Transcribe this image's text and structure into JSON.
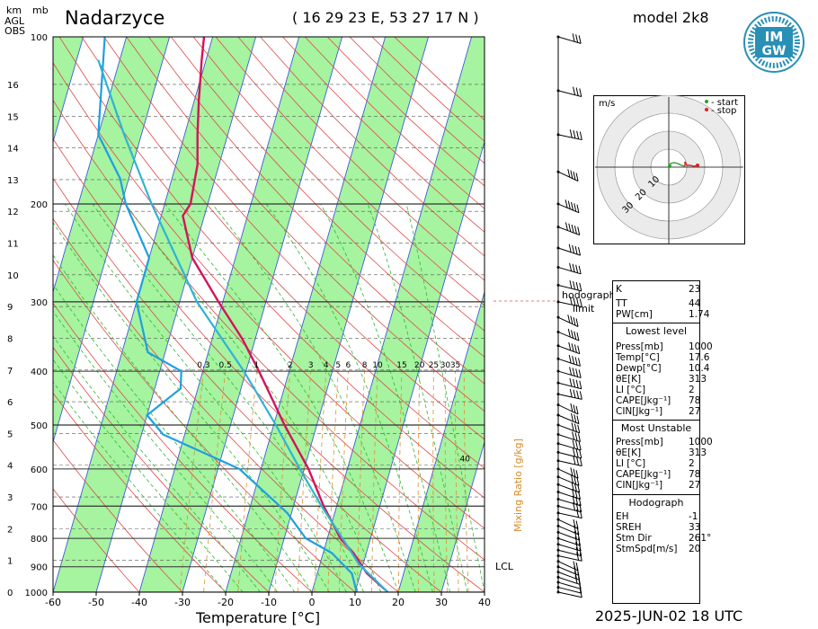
{
  "header": {
    "station": "Nadarzyce",
    "coords": "( 16 29 23  E, 53 27 17 N )",
    "model": "model 2k8",
    "datetime": "2025-JUN-02   18 UTC",
    "km_label": "km",
    "mb_label": "mb",
    "agl_label": "AGL",
    "obs_label": "OBS",
    "x_axis_label": "Temperature [°C]",
    "mixing_ratio_label": "Mixing Ratio [g/kg]",
    "hodograph_limit": [
      "hodograph",
      "limit"
    ],
    "lcl_label": "LCL"
  },
  "logo": {
    "text_top": "IM",
    "text_bottom": "GW",
    "color": "#2a8fb5"
  },
  "chart_data": {
    "type": "line",
    "title": "",
    "xlabel": "Temperature [°C]",
    "ylabel": "",
    "xlim": [
      -60,
      40
    ],
    "ylim_pressure_hpa": [
      1000,
      100
    ],
    "skew_deg_per_ln": 37,
    "x_ticks": [
      -60,
      -50,
      -40,
      -30,
      -20,
      -10,
      0,
      10,
      20,
      30,
      40
    ],
    "pressure_ticks": [
      100,
      200,
      300,
      400,
      500,
      600,
      700,
      800,
      900,
      1000
    ],
    "km_ticks": [
      0,
      1,
      2,
      3,
      4,
      5,
      6,
      7,
      8,
      9,
      10,
      11,
      12,
      13,
      14,
      15,
      16
    ],
    "mixing_ratio_ticks": [
      "0.3",
      "0.5",
      "1",
      "2",
      "3",
      "4",
      "5",
      "6",
      "8",
      "10",
      "15",
      "20",
      "25",
      "30",
      "35",
      "40"
    ],
    "colors": {
      "temperature": "#d4145a",
      "dewpoint": "#1e9fe0",
      "parcel": "#2fb3d4",
      "isotherm_band": "#a6f3a0"
    },
    "series": [
      {
        "role": "temperature",
        "points": [
          [
            1000,
            17.6
          ],
          [
            925,
            11.5
          ],
          [
            850,
            7
          ],
          [
            800,
            3
          ],
          [
            700,
            -3
          ],
          [
            600,
            -9
          ],
          [
            500,
            -17.5
          ],
          [
            400,
            -27
          ],
          [
            350,
            -33
          ],
          [
            300,
            -41
          ],
          [
            250,
            -50
          ],
          [
            210,
            -55
          ],
          [
            200,
            -54
          ],
          [
            170,
            -55
          ],
          [
            150,
            -57
          ],
          [
            130,
            -59
          ],
          [
            110,
            -61
          ],
          [
            100,
            -62
          ]
        ]
      },
      {
        "role": "dewpoint",
        "points": [
          [
            1000,
            10.4
          ],
          [
            925,
            8
          ],
          [
            850,
            2
          ],
          [
            800,
            -5
          ],
          [
            720,
            -11
          ],
          [
            600,
            -25
          ],
          [
            520,
            -45
          ],
          [
            480,
            -50
          ],
          [
            430,
            -44
          ],
          [
            400,
            -45
          ],
          [
            370,
            -54
          ],
          [
            300,
            -60
          ],
          [
            250,
            -60
          ],
          [
            200,
            -69
          ],
          [
            180,
            -72
          ],
          [
            150,
            -80
          ],
          [
            100,
            -85
          ]
        ]
      },
      {
        "role": "parcel",
        "points": [
          [
            1000,
            17.6
          ],
          [
            890,
            9
          ],
          [
            800,
            3.5
          ],
          [
            700,
            -3.5
          ],
          [
            600,
            -11
          ],
          [
            500,
            -19.5
          ],
          [
            400,
            -30.5
          ],
          [
            300,
            -46
          ],
          [
            200,
            -63
          ],
          [
            150,
            -74
          ],
          [
            110,
            -85
          ]
        ]
      }
    ]
  },
  "wind": {
    "barbs_pressure_hpa": [
      1000,
      980,
      960,
      940,
      920,
      900,
      880,
      860,
      840,
      820,
      800,
      780,
      760,
      740,
      720,
      700,
      680,
      660,
      640,
      620,
      600,
      580,
      560,
      540,
      520,
      500,
      480,
      460,
      440,
      420,
      400,
      380,
      360,
      340,
      320,
      300,
      280,
      260,
      240,
      220,
      200,
      175,
      150,
      125,
      100
    ],
    "speed_kt": [
      10,
      15,
      15,
      20,
      20,
      25,
      25,
      25,
      25,
      25,
      25,
      25,
      25,
      25,
      25,
      30,
      30,
      30,
      30,
      30,
      30,
      30,
      30,
      30,
      35,
      35,
      35,
      35,
      40,
      40,
      40,
      40,
      45,
      45,
      45,
      40,
      40,
      45,
      45,
      50,
      50,
      45,
      40,
      35,
      30
    ]
  },
  "hodograph": {
    "unit": "m/s",
    "legend_start": "- start",
    "legend_stop": "- stop",
    "ring_labels": [
      "10",
      "20",
      "30"
    ],
    "points_uv": [
      [
        0.5,
        0.5
      ],
      [
        1,
        2
      ],
      [
        3,
        2.5
      ],
      [
        5,
        2
      ],
      [
        7,
        1
      ],
      [
        9,
        0.5
      ],
      [
        9,
        3
      ],
      [
        10,
        1
      ],
      [
        12,
        1
      ],
      [
        14,
        0.5
      ],
      [
        16,
        1
      ]
    ]
  },
  "indices": {
    "K_label": "K",
    "K": "23",
    "TT_label": "TT",
    "TT": "44",
    "PW_label": "PW[cm]",
    "PW": "1.74",
    "lowest_title": "Lowest level",
    "lowest": [
      [
        "Press[mb]",
        "1000"
      ],
      [
        "Temp[°C]",
        "17.6"
      ],
      [
        "Dewp[°C]",
        "10.4"
      ],
      [
        "θE[K]",
        "313"
      ],
      [
        "LI [°C]",
        "2"
      ],
      [
        "CAPE[Jkg⁻¹]",
        "78"
      ],
      [
        "CIN[Jkg⁻¹]",
        "27"
      ]
    ],
    "unstable_title": "Most Unstable",
    "unstable": [
      [
        "Press[mb]",
        "1000"
      ],
      [
        "θE[K]",
        "313"
      ],
      [
        "LI [°C]",
        "2"
      ],
      [
        "CAPE[Jkg⁻¹]",
        "78"
      ],
      [
        "CIN[Jkg⁻¹]",
        "27"
      ]
    ],
    "hodograph_title": "Hodograph",
    "hodo": [
      [
        "EH",
        "-1"
      ],
      [
        "SREH",
        "33"
      ],
      [
        "Stm Dir",
        "261°"
      ],
      [
        "StmSpd[m/s]",
        "20"
      ]
    ]
  }
}
